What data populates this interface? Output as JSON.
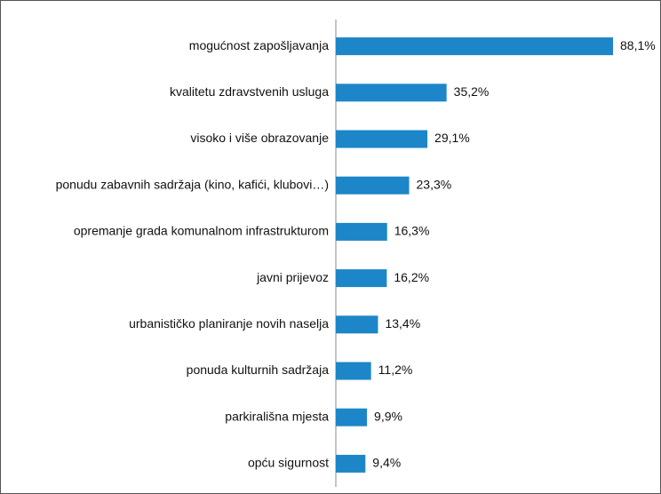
{
  "chart_data": {
    "type": "hbar",
    "categories": [
      "mogućnost zapošljavanja",
      "kvalitetu zdravstvenih usluga",
      "visoko i više obrazovanje",
      "ponudu zabavnih sadržaja (kino, kafići, klubovi…)",
      "opremanje grada komunalnom infrastrukturom",
      "javni prijevoz",
      "urbanističko planiranje novih naselja",
      "ponuda kulturnih sadržaja",
      "parkirališna mjesta",
      "opću sigurnost"
    ],
    "values": [
      88.1,
      35.2,
      29.1,
      23.3,
      16.3,
      16.2,
      13.4,
      11.2,
      9.9,
      9.4
    ],
    "value_labels": [
      "88,1%",
      "35,2%",
      "29,1%",
      "23,3%",
      "16,3%",
      "16,2%",
      "13,4%",
      "11,2%",
      "9,9%",
      "9,4%"
    ],
    "color": "#1c86c8"
  }
}
